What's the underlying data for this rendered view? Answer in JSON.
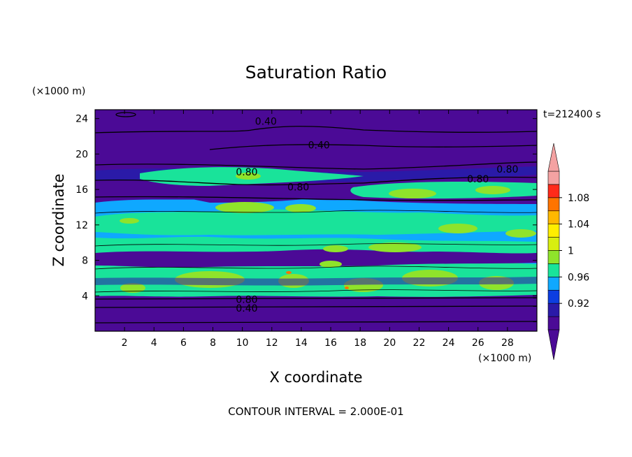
{
  "chart_data": {
    "type": "contour",
    "title": "Saturation Ratio",
    "xlabel": "X coordinate",
    "ylabel": "Z coordinate",
    "x_unit": "(×1000 m)",
    "y_unit": "(×1000 m)",
    "time_label": "t=212400 s",
    "footer": "CONTOUR INTERVAL = 2.000E-01",
    "xlim": [
      0,
      30
    ],
    "ylim": [
      0,
      25
    ],
    "x_ticks": [
      "2",
      "4",
      "6",
      "8",
      "10",
      "12",
      "14",
      "16",
      "18",
      "20",
      "22",
      "24",
      "26",
      "28"
    ],
    "y_ticks": [
      "4",
      "8",
      "12",
      "16",
      "20",
      "24"
    ],
    "colorbar": {
      "labels": [
        "0.92",
        "0.96",
        "1",
        "1.04",
        "1.08"
      ],
      "colors": [
        "#4b0a96",
        "#2a1aa8",
        "#0c3ee0",
        "#0fa8ff",
        "#19e39a",
        "#8fe32b",
        "#d8ee10",
        "#ffee00",
        "#ffb800",
        "#ff7400",
        "#ff2a1a",
        "#f4a2a2"
      ]
    },
    "contour_labels": [
      {
        "text": "0.40",
        "x": 11.6,
        "y": 23.7
      },
      {
        "text": "0.40",
        "x": 15.2,
        "y": 21.0
      },
      {
        "text": "0.80",
        "x": 10.3,
        "y": 18.0
      },
      {
        "text": "0.80",
        "x": 13.8,
        "y": 16.3
      },
      {
        "text": "0.80",
        "x": 28.0,
        "y": 18.3
      },
      {
        "text": "0.80",
        "x": 26.0,
        "y": 17.2
      },
      {
        "text": "0.80",
        "x": 10.3,
        "y": 3.6
      },
      {
        "text": "0.40",
        "x": 10.3,
        "y": 2.6
      }
    ]
  }
}
